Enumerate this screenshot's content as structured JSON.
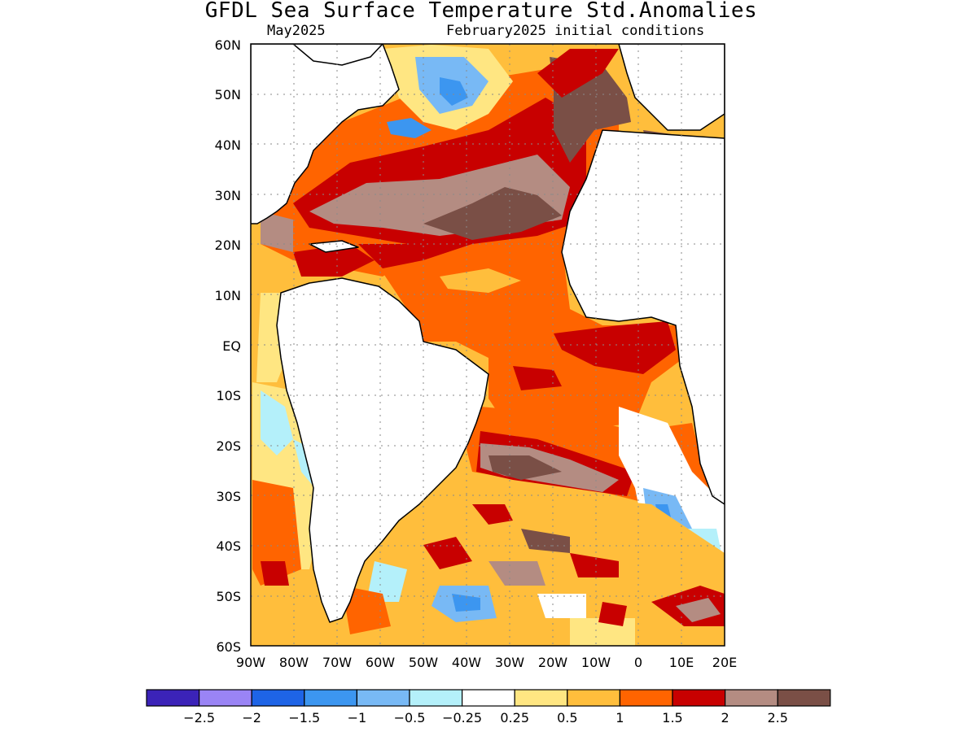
{
  "title": "GFDL Sea Surface Temperature Std.Anomalies",
  "subtitle_left": "May2025",
  "subtitle_right": "February2025 initial conditions",
  "map": {
    "region": "Atlantic Ocean",
    "lon_range": [
      -90,
      20
    ],
    "lat_range": [
      -60,
      60
    ],
    "grid": true,
    "lat_ticks": [
      "60N",
      "50N",
      "40N",
      "30N",
      "20N",
      "10N",
      "EQ",
      "10S",
      "20S",
      "30S",
      "40S",
      "50S",
      "60S"
    ],
    "lon_ticks": [
      "90W",
      "80W",
      "70W",
      "60W",
      "50W",
      "40W",
      "30W",
      "20W",
      "10W",
      "0",
      "10E",
      "20E"
    ]
  },
  "colorbar": {
    "colors": [
      "#3b23b8",
      "#9a84f5",
      "#1e64e6",
      "#3c96f0",
      "#78b9f5",
      "#b4f0fa",
      "#ffffff",
      "#ffe682",
      "#ffbe3c",
      "#ff6400",
      "#c80000",
      "#b48c82",
      "#7a4f46"
    ],
    "labels": [
      "−2.5",
      "−2",
      "−1.5",
      "−1",
      "−0.5",
      "−0.25",
      "0.25",
      "0.5",
      "1",
      "1.5",
      "2",
      "2.5"
    ]
  }
}
